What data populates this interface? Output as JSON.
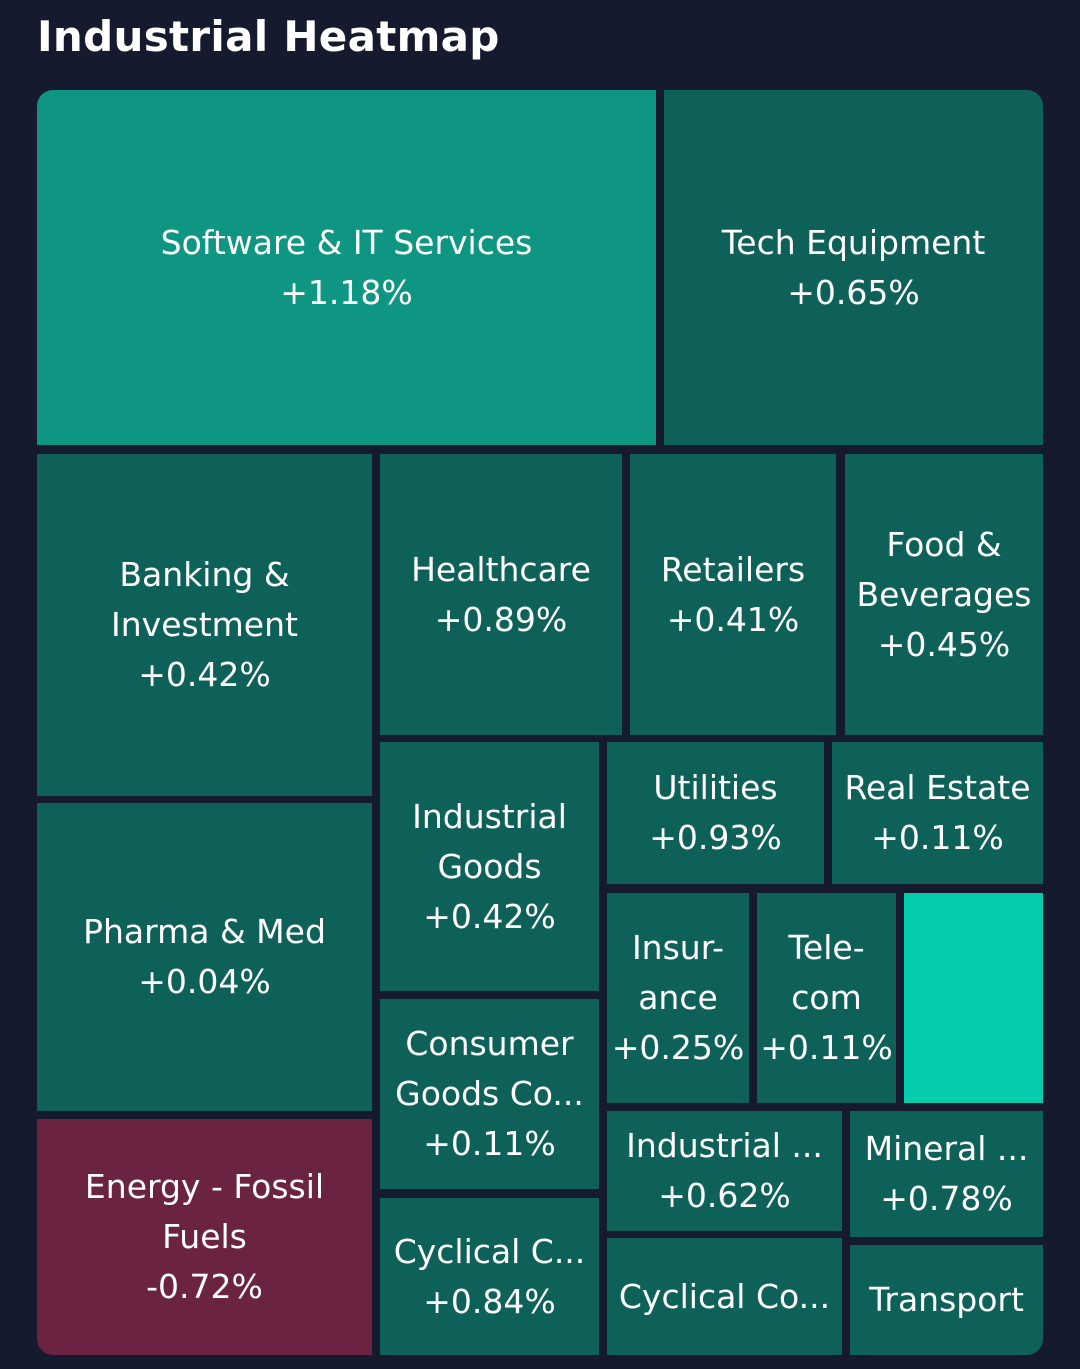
{
  "header": {
    "title": "Industrial Heatmap"
  },
  "colors": {
    "background": "#151a2e",
    "neutral_positive": "#0e6159",
    "strong_positive": "#0e9683",
    "bright_positive": "#05ccaa",
    "negative": "#6b2342"
  },
  "chart_data": {
    "type": "heatmap",
    "title": "Industrial Heatmap",
    "sectors": [
      {
        "label": "Software & IT Services",
        "change": "+1.18%",
        "value": 1.18
      },
      {
        "label": "Tech Equipment",
        "change": "+0.65%",
        "value": 0.65
      },
      {
        "label": "Banking &\nInvestment",
        "change": "+0.42%",
        "value": 0.42
      },
      {
        "label": "Healthcare",
        "change": "+0.89%",
        "value": 0.89
      },
      {
        "label": "Retailers",
        "change": "+0.41%",
        "value": 0.41
      },
      {
        "label": "Food &\nBeverages",
        "change": "+0.45%",
        "value": 0.45
      },
      {
        "label": "Pharma & Med",
        "change": "+0.04%",
        "value": 0.04
      },
      {
        "label": "Industrial\nGoods",
        "change": "+0.42%",
        "value": 0.42
      },
      {
        "label": "Utilities",
        "change": "+0.93%",
        "value": 0.93
      },
      {
        "label": "Real Estate",
        "change": "+0.11%",
        "value": 0.11
      },
      {
        "label": "Insur-\nance",
        "change": "+0.25%",
        "value": 0.25
      },
      {
        "label": "Tele-\ncom",
        "change": "+0.11%",
        "value": 0.11
      },
      {
        "label": "",
        "change": "",
        "value": null
      },
      {
        "label": "Consumer\nGoods Co...",
        "change": "+0.11%",
        "value": 0.11
      },
      {
        "label": "Energy - Fossil\nFuels",
        "change": "-0.72%",
        "value": -0.72
      },
      {
        "label": "Industrial ...",
        "change": "+0.62%",
        "value": 0.62
      },
      {
        "label": "Mineral ...",
        "change": "+0.78%",
        "value": 0.78
      },
      {
        "label": "Cyclical C...",
        "change": "+0.84%",
        "value": 0.84
      },
      {
        "label": "Cyclical Co...",
        "change": "",
        "value": null
      },
      {
        "label": "Transport",
        "change": "",
        "value": null
      }
    ]
  }
}
